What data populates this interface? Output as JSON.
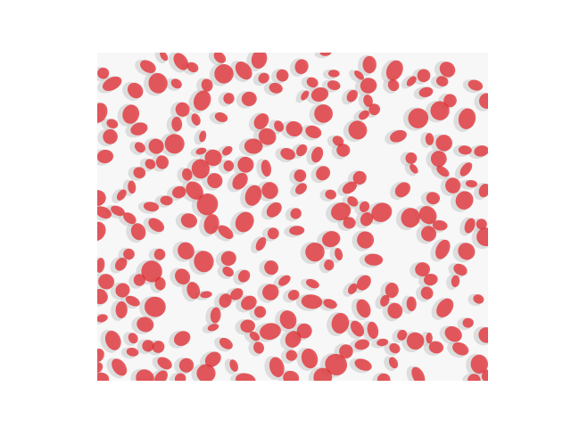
{
  "image": {
    "subject": "red-blood-cell-segmentation-overlay",
    "background_color": "#ffffff",
    "photo_background_color": "#f7f7f7",
    "cell_shadow_color": "#c8c8c8",
    "overlay_color": "#e0282d",
    "overlay_opacity": 0.75,
    "approx_cell_count": 260
  }
}
